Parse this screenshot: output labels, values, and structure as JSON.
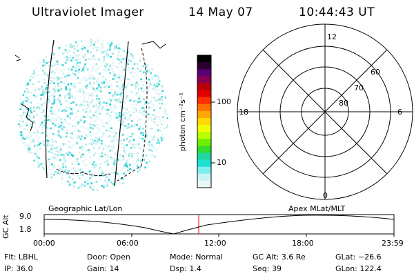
{
  "header": {
    "title": "Ultraviolet Imager",
    "date": "14 May 07",
    "time": "10:44:43 UT"
  },
  "colorbar": {
    "unit_label": "photon cm⁻²s⁻¹",
    "ticks": [
      "100",
      "10"
    ],
    "colors": [
      "#000000",
      "#2a0030",
      "#5a0070",
      "#8a0050",
      "#b8000a",
      "#e00000",
      "#ff3000",
      "#ff7000",
      "#ffa800",
      "#ffd800",
      "#f0ff00",
      "#b8ff00",
      "#70ee00",
      "#30dd30",
      "#20d8a0",
      "#20e0d0",
      "#80eef0",
      "#c8f4f4",
      "#e8f8f8"
    ]
  },
  "polar": {
    "mlt_labels": {
      "top": "12",
      "bottom": "0",
      "left": "18",
      "right": "6"
    },
    "lat_labels": [
      "60",
      "70",
      "80"
    ]
  },
  "timeline": {
    "left_title": "Geographic Lat/Lon",
    "right_title": "Apex MLat/MLT",
    "axis_label": "GC Alt",
    "y_ticks": [
      "9.0",
      "1.8"
    ],
    "x_ticks": [
      "00:00",
      "06:00",
      "12:00",
      "18:00",
      "23:59"
    ],
    "marker_color": "#e00000"
  },
  "info": {
    "row1": [
      {
        "label": "Flt:",
        "value": "LBHL"
      },
      {
        "label": "Door:",
        "value": "Open"
      },
      {
        "label": "Mode:",
        "value": "Normal"
      },
      {
        "label": "GC Alt:",
        "value": "3.6 Re"
      },
      {
        "label": "GLat:",
        "value": "−26.6"
      }
    ],
    "row2": [
      {
        "label": "IP:",
        "value": "36.0"
      },
      {
        "label": "Gain:",
        "value": "14"
      },
      {
        "label": "Dsp:",
        "value": "1.4"
      },
      {
        "label": "Seq:",
        "value": "39"
      },
      {
        "label": "GLon:",
        "value": "122.4"
      }
    ]
  }
}
